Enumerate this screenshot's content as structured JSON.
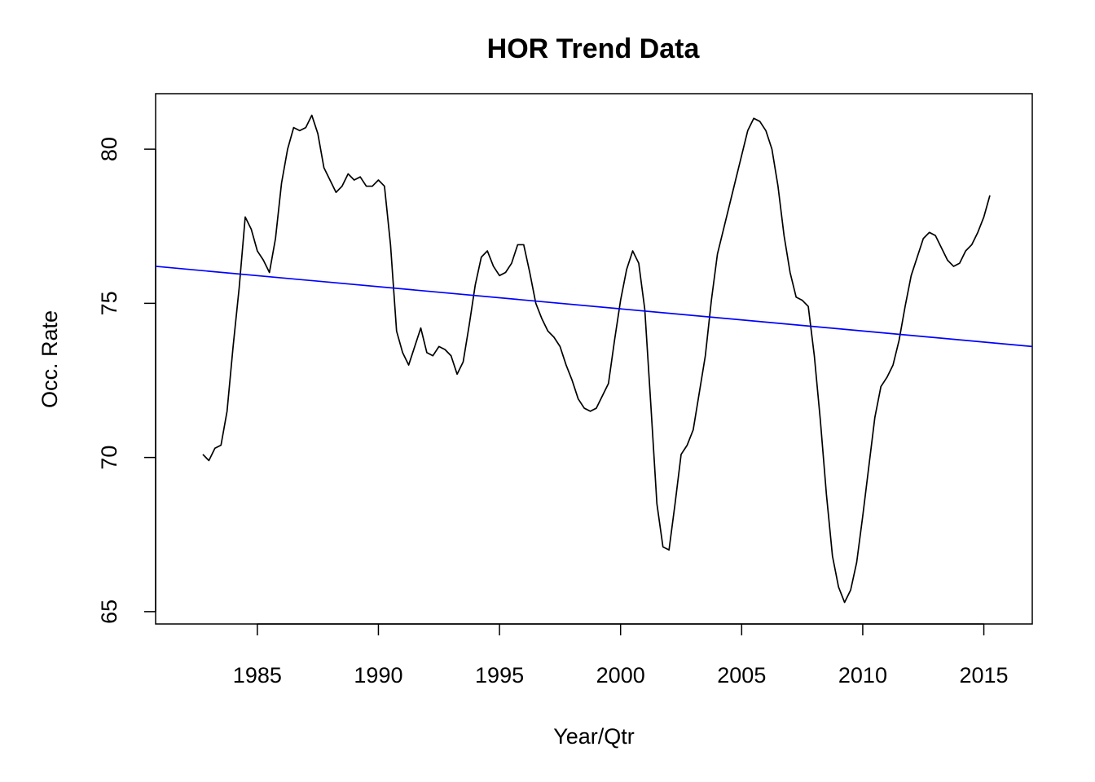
{
  "chart_data": {
    "type": "line",
    "title": "HOR Trend Data",
    "xlabel": "Year/Qtr",
    "ylabel": "Occ. Rate",
    "xlim": [
      1980.8,
      2017.0
    ],
    "ylim": [
      64.6,
      81.8
    ],
    "x_ticks": [
      {
        "value": 1985,
        "label": "1985"
      },
      {
        "value": 1990,
        "label": "1990"
      },
      {
        "value": 1995,
        "label": "1995"
      },
      {
        "value": 2000,
        "label": "2000"
      },
      {
        "value": 2005,
        "label": "2005"
      },
      {
        "value": 2010,
        "label": "2010"
      },
      {
        "value": 2015,
        "label": "2015"
      }
    ],
    "y_ticks": [
      {
        "value": 65,
        "label": "65"
      },
      {
        "value": 70,
        "label": "70"
      },
      {
        "value": 75,
        "label": "75"
      },
      {
        "value": 80,
        "label": "80"
      }
    ],
    "grid": false,
    "series": [
      {
        "color": "#000000",
        "x": [
          1982.75,
          1983.0,
          1983.25,
          1983.5,
          1983.75,
          1984.0,
          1984.25,
          1984.5,
          1984.75,
          1985.0,
          1985.25,
          1985.5,
          1985.75,
          1986.0,
          1986.25,
          1986.5,
          1986.75,
          1987.0,
          1987.25,
          1987.5,
          1987.75,
          1988.0,
          1988.25,
          1988.5,
          1988.75,
          1989.0,
          1989.25,
          1989.5,
          1989.75,
          1990.0,
          1990.25,
          1990.5,
          1990.75,
          1991.0,
          1991.25,
          1991.5,
          1991.75,
          1992.0,
          1992.25,
          1992.5,
          1992.75,
          1993.0,
          1993.25,
          1993.5,
          1993.75,
          1994.0,
          1994.25,
          1994.5,
          1994.75,
          1995.0,
          1995.25,
          1995.5,
          1995.75,
          1996.0,
          1996.25,
          1996.5,
          1996.75,
          1997.0,
          1997.25,
          1997.5,
          1997.75,
          1998.0,
          1998.25,
          1998.5,
          1998.75,
          1999.0,
          1999.25,
          1999.5,
          1999.75,
          2000.0,
          2000.25,
          2000.5,
          2000.75,
          2001.0,
          2001.25,
          2001.5,
          2001.75,
          2002.0,
          2002.25,
          2002.5,
          2002.75,
          2003.0,
          2003.25,
          2003.5,
          2003.75,
          2004.0,
          2004.25,
          2004.5,
          2004.75,
          2005.0,
          2005.25,
          2005.5,
          2005.75,
          2006.0,
          2006.25,
          2006.5,
          2006.75,
          2007.0,
          2007.25,
          2007.5,
          2007.75,
          2008.0,
          2008.25,
          2008.5,
          2008.75,
          2009.0,
          2009.25,
          2009.5,
          2009.75,
          2010.0,
          2010.25,
          2010.5,
          2010.75,
          2011.0,
          2011.25,
          2011.5,
          2011.75,
          2012.0,
          2012.25,
          2012.5,
          2012.75,
          2013.0,
          2013.25,
          2013.5,
          2013.75,
          2014.0,
          2014.25,
          2014.5,
          2014.75,
          2015.0,
          2015.25
        ],
        "y": [
          70.1,
          69.9,
          70.3,
          70.4,
          71.5,
          73.6,
          75.5,
          77.8,
          77.4,
          76.7,
          76.4,
          76.0,
          77.1,
          78.9,
          80.0,
          80.7,
          80.6,
          80.7,
          81.1,
          80.5,
          79.4,
          79.0,
          78.6,
          78.8,
          79.2,
          79.0,
          79.1,
          78.8,
          78.8,
          79.0,
          78.8,
          76.9,
          74.1,
          73.4,
          73.0,
          73.6,
          74.2,
          73.4,
          73.3,
          73.6,
          73.5,
          73.3,
          72.7,
          73.1,
          74.3,
          75.6,
          76.5,
          76.7,
          76.2,
          75.9,
          76.0,
          76.3,
          76.9,
          76.9,
          76.0,
          75.0,
          74.5,
          74.1,
          73.9,
          73.6,
          73.0,
          72.5,
          71.9,
          71.6,
          71.5,
          71.6,
          72.0,
          72.4,
          73.8,
          75.1,
          76.1,
          76.7,
          76.3,
          74.8,
          71.7,
          68.5,
          67.1,
          67.0,
          68.5,
          70.1,
          70.4,
          70.9,
          72.1,
          73.3,
          75.1,
          76.6,
          77.4,
          78.2,
          79.0,
          79.8,
          80.6,
          81.0,
          80.9,
          80.6,
          80.0,
          78.8,
          77.2,
          76.0,
          75.2,
          75.1,
          74.9,
          73.3,
          71.2,
          68.8,
          66.8,
          65.8,
          65.3,
          65.7,
          66.6,
          68.1,
          69.7,
          71.3,
          72.3,
          72.6,
          73.0,
          73.8,
          74.9,
          75.9,
          76.5,
          77.1,
          77.3,
          77.2,
          76.8,
          76.4,
          76.2,
          76.3,
          76.7,
          76.9,
          77.3,
          77.8,
          78.5
        ]
      },
      {
        "color": "#0000ff",
        "x": [
          1980.8,
          2017.0
        ],
        "y": [
          76.2,
          73.6
        ]
      }
    ]
  }
}
